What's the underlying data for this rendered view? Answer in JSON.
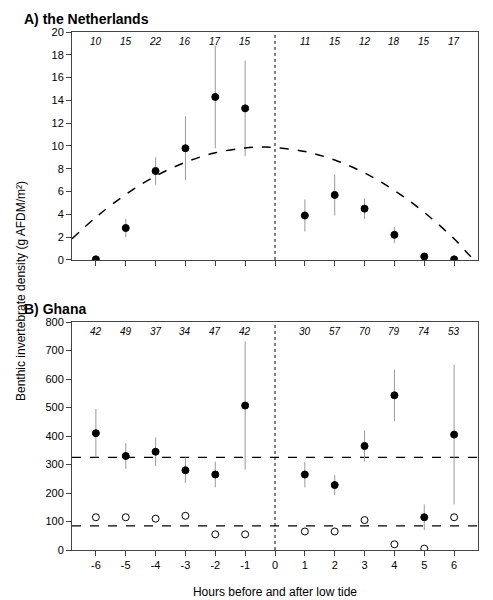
{
  "chart_data": [
    {
      "type": "scatter",
      "title": "A) the Netherlands",
      "x": [
        -6,
        -5,
        -4,
        -3,
        -2,
        -1,
        1,
        2,
        3,
        4,
        5,
        6
      ],
      "series": [
        {
          "type": "scatter",
          "marker": "filled",
          "color": "#000000",
          "values": [
            0.05,
            2.8,
            7.8,
            9.8,
            14.3,
            13.3,
            3.9,
            5.7,
            4.5,
            2.2,
            0.3,
            0.05
          ],
          "error_lo": [
            0.0,
            0.8,
            1.2,
            2.8,
            4.5,
            4.2,
            1.4,
            1.8,
            0.9,
            0.7,
            0.2,
            0.0
          ],
          "error_hi": [
            0.0,
            0.8,
            1.2,
            2.8,
            4.5,
            4.2,
            1.4,
            1.8,
            0.9,
            0.7,
            0.2,
            0.0
          ],
          "error_color": "#999999"
        },
        {
          "type": "line",
          "line_style": "dashed",
          "color": "#000000",
          "x": [
            -6.8,
            -6,
            -5,
            -4,
            -3,
            -2,
            -1,
            -0.4,
            0,
            1,
            2,
            3,
            4,
            5,
            6,
            6.7,
            6.8
          ],
          "values": [
            1.8559,
            3.7412,
            5.7444,
            7.3548,
            8.5724,
            9.3972,
            9.8293,
            9.9,
            9.8686,
            9.5151,
            8.7688,
            7.6297,
            6.0979,
            4.1733,
            1.8559,
            0,
            0
          ]
        }
      ],
      "vlines": [
        0
      ],
      "annotations": [
        {
          "x": -6,
          "text": "10"
        },
        {
          "x": -5,
          "text": "15"
        },
        {
          "x": -4,
          "text": "22"
        },
        {
          "x": -3,
          "text": "16"
        },
        {
          "x": -2,
          "text": "17"
        },
        {
          "x": -1,
          "text": "15"
        },
        {
          "x": 1,
          "text": "11"
        },
        {
          "x": 2,
          "text": "15"
        },
        {
          "x": 3,
          "text": "12"
        },
        {
          "x": 4,
          "text": "18"
        },
        {
          "x": 5,
          "text": "15"
        },
        {
          "x": 6,
          "text": "17"
        }
      ],
      "ylabel": "Benthic invertebrate density (g AFDM/m²)",
      "xlim": [
        -6.8,
        6.8
      ],
      "xticks": [
        -6,
        -5,
        -4,
        -3,
        -2,
        -1,
        0,
        1,
        2,
        3,
        4,
        5,
        6
      ],
      "ylim": [
        0,
        20
      ],
      "yticks": [
        0,
        2,
        4,
        6,
        8,
        10,
        12,
        14,
        16,
        18,
        20
      ],
      "tick_labels": "y",
      "grid": false
    },
    {
      "type": "scatter",
      "title": "B) Ghana",
      "x": [
        -6,
        -5,
        -4,
        -3,
        -2,
        -1,
        1,
        2,
        3,
        4,
        5,
        6
      ],
      "series": [
        {
          "type": "scatter",
          "marker": "filled",
          "color": "#000000",
          "values": [
            410,
            330,
            345,
            280,
            265,
            507,
            265,
            228,
            365,
            543,
            115,
            405
          ],
          "error_lo": [
            85,
            45,
            50,
            45,
            45,
            225,
            45,
            35,
            55,
            90,
            45,
            245
          ],
          "error_hi": [
            85,
            45,
            50,
            45,
            45,
            225,
            45,
            35,
            55,
            90,
            45,
            245
          ],
          "error_color": "#999999"
        },
        {
          "type": "scatter",
          "marker": "open",
          "color": "#000000",
          "values": [
            115,
            115,
            110,
            120,
            55,
            55,
            65,
            65,
            105,
            20,
            5,
            115
          ]
        }
      ],
      "hlines": [
        325,
        85
      ],
      "vlines": [
        0
      ],
      "annotations": [
        {
          "x": -6,
          "text": "42"
        },
        {
          "x": -5,
          "text": "49"
        },
        {
          "x": -4,
          "text": "37"
        },
        {
          "x": -3,
          "text": "34"
        },
        {
          "x": -2,
          "text": "47"
        },
        {
          "x": -1,
          "text": "42"
        },
        {
          "x": 1,
          "text": "30"
        },
        {
          "x": 2,
          "text": "57"
        },
        {
          "x": 3,
          "text": "70"
        },
        {
          "x": 4,
          "text": "79"
        },
        {
          "x": 5,
          "text": "74"
        },
        {
          "x": 6,
          "text": "53"
        }
      ],
      "xlabel": "Hours before and after low tide",
      "xlim": [
        -6.8,
        6.8
      ],
      "xticks": [
        -6,
        -5,
        -4,
        -3,
        -2,
        -1,
        0,
        1,
        2,
        3,
        4,
        5,
        6
      ],
      "ylim": [
        0,
        800
      ],
      "yticks": [
        0,
        100,
        200,
        300,
        400,
        500,
        600,
        700,
        800
      ],
      "grid": false
    }
  ]
}
